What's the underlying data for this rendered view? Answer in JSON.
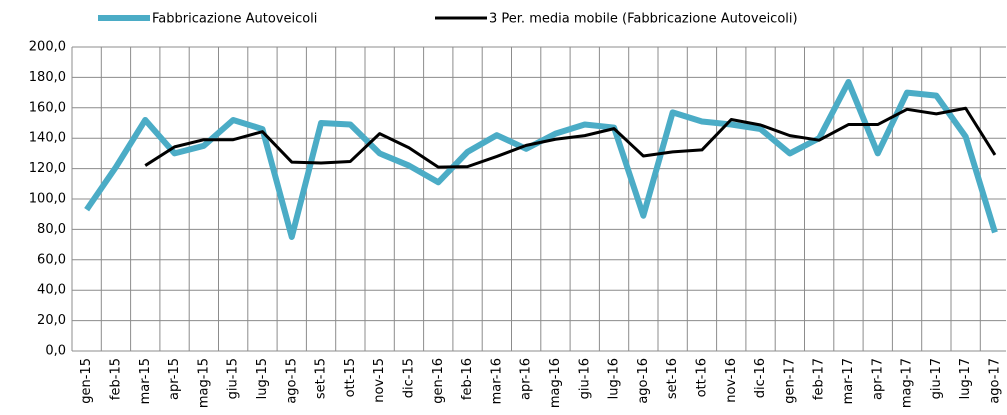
{
  "chart_data": {
    "type": "line",
    "categories": [
      "gen-15",
      "feb-15",
      "mar-15",
      "apr-15",
      "mag-15",
      "giu-15",
      "lug-15",
      "ago-15",
      "set-15",
      "ott-15",
      "nov-15",
      "dic-15",
      "gen-16",
      "feb-16",
      "mar-16",
      "apr-16",
      "mag-16",
      "giu-16",
      "lug-16",
      "ago-16",
      "set-16",
      "ott-16",
      "nov-16",
      "dic-16",
      "gen-17",
      "feb-17",
      "mar-17",
      "apr-17",
      "mag-17",
      "giu-17",
      "lug-17",
      "ago-17"
    ],
    "series": [
      {
        "name": "Fabbricazione Autoveicoli",
        "color": "#4bacc6",
        "values": [
          93,
          121,
          152,
          130,
          135,
          152,
          146,
          75,
          150,
          149,
          130,
          122,
          111,
          131,
          142,
          133,
          143,
          149,
          147,
          89,
          157,
          151,
          149,
          146,
          130,
          140,
          177,
          130,
          170,
          168,
          141,
          78
        ]
      },
      {
        "name": "3 Per. media mobile (Fabbricazione Autoveicoli)",
        "color": "#000000",
        "values": [
          null,
          null,
          122,
          134.3,
          139,
          139,
          144.3,
          124.3,
          123.7,
          124.7,
          143,
          133.7,
          121,
          121.3,
          128,
          135.3,
          139.3,
          141.7,
          146.3,
          128.3,
          131,
          132.3,
          152.3,
          148.7,
          141.7,
          138.7,
          149,
          149,
          159,
          156,
          159.7,
          129
        ]
      }
    ],
    "ylim": [
      0,
      200
    ],
    "yticks": [
      {
        "value": 0,
        "label": "0,0"
      },
      {
        "value": 20,
        "label": "20,0"
      },
      {
        "value": 40,
        "label": "40,0"
      },
      {
        "value": 60,
        "label": "60,0"
      },
      {
        "value": 80,
        "label": "80,0"
      },
      {
        "value": 100,
        "label": "100,0"
      },
      {
        "value": 120,
        "label": "120,0"
      },
      {
        "value": 140,
        "label": "140,0"
      },
      {
        "value": 160,
        "label": "160,0"
      },
      {
        "value": 180,
        "label": "180,0"
      },
      {
        "value": 200,
        "label": "200,0"
      }
    ],
    "grid": true,
    "legend": "top"
  }
}
